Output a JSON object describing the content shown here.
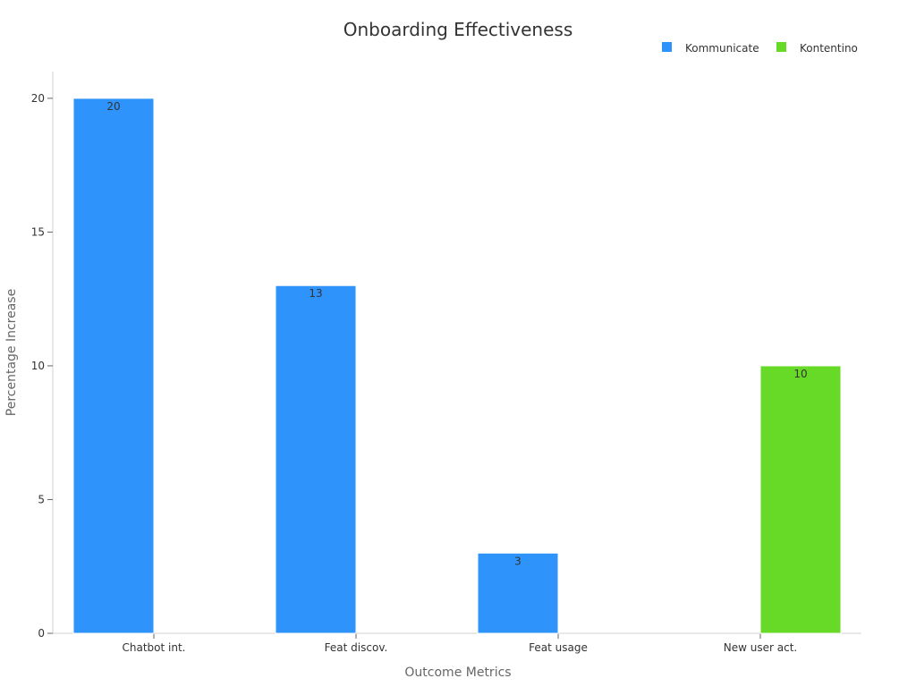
{
  "chart_data": {
    "type": "bar",
    "title": "Onboarding Effectiveness",
    "xlabel": "Outcome Metrics",
    "ylabel": "Percentage Increase",
    "categories": [
      "Chatbot int.",
      "Feat discov.",
      "Feat usage",
      "New user act."
    ],
    "series": [
      {
        "name": "Kommunicate",
        "color": "#2e93fa",
        "values": [
          20,
          13,
          3,
          null
        ]
      },
      {
        "name": "Kontentino",
        "color": "#66da26",
        "values": [
          null,
          null,
          null,
          10
        ]
      }
    ],
    "ylim": [
      0,
      21
    ],
    "yticks": [
      0,
      5,
      10,
      15,
      20
    ],
    "grid": false,
    "legend_position": "top-right"
  }
}
